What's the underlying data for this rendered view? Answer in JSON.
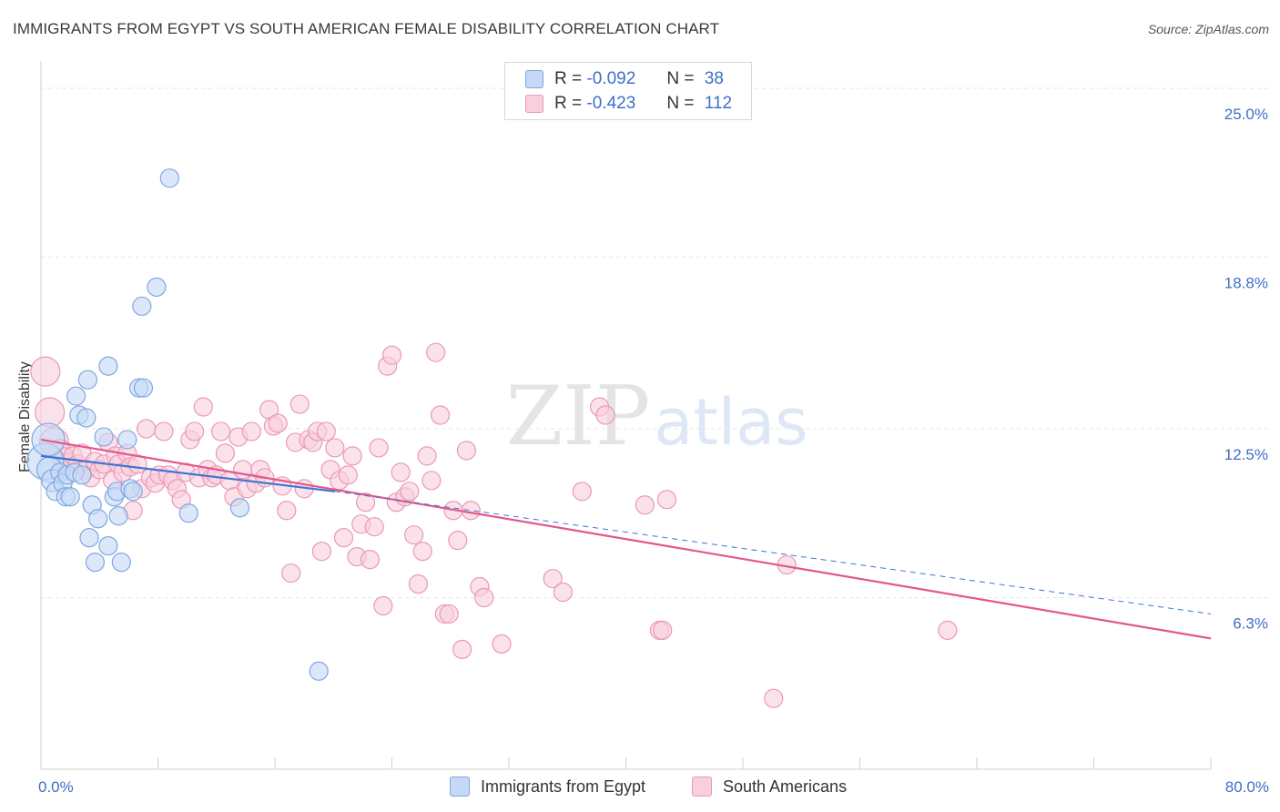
{
  "title": "IMMIGRANTS FROM EGYPT VS SOUTH AMERICAN FEMALE DISABILITY CORRELATION CHART",
  "source": "Source: ZipAtlas.com",
  "watermark": {
    "zip": "ZIP",
    "atlas": "atlas"
  },
  "legend": {
    "rows": [
      {
        "r_label": "R =",
        "r_value": "-0.092",
        "n_label": "N =",
        "n_value": "38"
      },
      {
        "r_label": "R =",
        "r_value": "-0.423",
        "n_label": "N =",
        "n_value": "112"
      }
    ]
  },
  "colors": {
    "blue_fill": "#c5d9f7",
    "blue_stroke": "#7ea7e0",
    "blue_line": "#3b74d4",
    "pink_fill": "#f9cfdc",
    "pink_stroke": "#eb98b4",
    "pink_line": "#e2588a",
    "tick_label": "#3f6fc7",
    "grid": "#e6e6e6"
  },
  "chart_data": {
    "type": "scatter",
    "title": "IMMIGRANTS FROM EGYPT VS SOUTH AMERICAN FEMALE DISABILITY CORRELATION CHART",
    "xlabel": "",
    "ylabel": "Female Disability",
    "xlim": [
      0,
      80
    ],
    "ylim": [
      0,
      25.8
    ],
    "x_tick_labels": [
      "0.0%",
      "80.0%"
    ],
    "y_ticks": [
      6.3,
      12.5,
      18.8,
      25.0
    ],
    "y_tick_labels": [
      "6.3%",
      "12.5%",
      "18.8%",
      "25.0%"
    ],
    "series": [
      {
        "name": "Immigrants from Egypt",
        "r": -0.092,
        "n": 38,
        "trend": {
          "x0": 0,
          "y0": 11.5,
          "x1": 20.1,
          "y1": 10.2,
          "dash_x1": 80,
          "dash_y1": 5.7
        },
        "points": [
          [
            0.3,
            11.3,
            20
          ],
          [
            0.5,
            12.1,
            18
          ],
          [
            0.6,
            11.0,
            14
          ],
          [
            0.8,
            10.6,
            12
          ],
          [
            1.0,
            10.2,
            10
          ],
          [
            1.3,
            10.9,
            10
          ],
          [
            1.5,
            10.5,
            10
          ],
          [
            1.7,
            10.0,
            10
          ],
          [
            1.8,
            10.8,
            10
          ],
          [
            2.0,
            10.0,
            10
          ],
          [
            2.3,
            10.9,
            10
          ],
          [
            2.4,
            13.7,
            10
          ],
          [
            2.6,
            13.0,
            10
          ],
          [
            2.8,
            10.8,
            10
          ],
          [
            3.1,
            12.9,
            10
          ],
          [
            3.2,
            14.3,
            10
          ],
          [
            3.3,
            8.5,
            10
          ],
          [
            3.5,
            9.7,
            10
          ],
          [
            3.7,
            7.6,
            10
          ],
          [
            3.9,
            9.2,
            10
          ],
          [
            4.3,
            12.2,
            10
          ],
          [
            4.6,
            14.8,
            10
          ],
          [
            4.6,
            8.2,
            10
          ],
          [
            5.0,
            10.0,
            10
          ],
          [
            5.2,
            10.2,
            10
          ],
          [
            5.3,
            9.3,
            10
          ],
          [
            5.5,
            7.6,
            10
          ],
          [
            5.9,
            12.1,
            10
          ],
          [
            6.1,
            10.3,
            10
          ],
          [
            6.3,
            10.2,
            10
          ],
          [
            6.7,
            14.0,
            10
          ],
          [
            6.9,
            17.0,
            10
          ],
          [
            7.0,
            14.0,
            10
          ],
          [
            7.9,
            17.7,
            10
          ],
          [
            8.8,
            21.7,
            10
          ],
          [
            10.1,
            9.4,
            10
          ],
          [
            13.6,
            9.6,
            10
          ],
          [
            19.0,
            3.6,
            10
          ]
        ]
      },
      {
        "name": "South Americans",
        "r": -0.423,
        "n": 112,
        "trend": {
          "x0": 0,
          "y0": 12.1,
          "x1": 80,
          "y1": 4.8
        },
        "points": [
          [
            0.3,
            14.6,
            16
          ],
          [
            0.6,
            13.1,
            16
          ],
          [
            0.9,
            12.0,
            16
          ],
          [
            1.3,
            11.7,
            12
          ],
          [
            1.6,
            11.4,
            12
          ],
          [
            1.9,
            11.2,
            12
          ],
          [
            2.2,
            11.5,
            10
          ],
          [
            2.5,
            11.2,
            10
          ],
          [
            2.8,
            11.6,
            10
          ],
          [
            3.1,
            11.0,
            10
          ],
          [
            3.4,
            10.7,
            10
          ],
          [
            3.7,
            11.3,
            10
          ],
          [
            4.0,
            11.0,
            10
          ],
          [
            4.3,
            11.2,
            10
          ],
          [
            4.6,
            12.0,
            10
          ],
          [
            4.9,
            10.6,
            10
          ],
          [
            5.1,
            11.5,
            10
          ],
          [
            5.3,
            11.2,
            10
          ],
          [
            5.6,
            10.9,
            10
          ],
          [
            5.9,
            11.6,
            10
          ],
          [
            6.1,
            11.1,
            10
          ],
          [
            6.3,
            9.5,
            10
          ],
          [
            6.6,
            11.2,
            10
          ],
          [
            6.9,
            10.3,
            10
          ],
          [
            7.2,
            12.5,
            10
          ],
          [
            7.5,
            10.7,
            10
          ],
          [
            7.8,
            10.5,
            10
          ],
          [
            8.1,
            10.8,
            10
          ],
          [
            8.4,
            12.4,
            10
          ],
          [
            8.7,
            10.8,
            10
          ],
          [
            9.0,
            10.6,
            10
          ],
          [
            9.3,
            10.3,
            10
          ],
          [
            9.6,
            9.9,
            10
          ],
          [
            9.9,
            10.9,
            10
          ],
          [
            10.2,
            12.1,
            10
          ],
          [
            10.5,
            12.4,
            10
          ],
          [
            10.8,
            10.7,
            10
          ],
          [
            11.1,
            13.3,
            10
          ],
          [
            11.4,
            11.0,
            10
          ],
          [
            11.7,
            10.7,
            10
          ],
          [
            12.0,
            10.8,
            10
          ],
          [
            12.3,
            12.4,
            10
          ],
          [
            12.6,
            11.6,
            10
          ],
          [
            12.9,
            10.6,
            10
          ],
          [
            13.2,
            10.0,
            10
          ],
          [
            13.5,
            12.2,
            10
          ],
          [
            13.8,
            11.0,
            10
          ],
          [
            14.1,
            10.3,
            10
          ],
          [
            14.4,
            12.4,
            10
          ],
          [
            14.7,
            10.5,
            10
          ],
          [
            15.0,
            11.0,
            10
          ],
          [
            15.3,
            10.7,
            10
          ],
          [
            15.6,
            13.2,
            10
          ],
          [
            15.9,
            12.6,
            10
          ],
          [
            16.2,
            12.7,
            10
          ],
          [
            16.5,
            10.4,
            10
          ],
          [
            16.8,
            9.5,
            10
          ],
          [
            17.1,
            7.2,
            10
          ],
          [
            17.4,
            12.0,
            10
          ],
          [
            17.7,
            13.4,
            10
          ],
          [
            18.0,
            10.3,
            10
          ],
          [
            18.3,
            12.1,
            10
          ],
          [
            18.6,
            12.0,
            10
          ],
          [
            18.9,
            12.4,
            10
          ],
          [
            19.2,
            8.0,
            10
          ],
          [
            19.5,
            12.4,
            10
          ],
          [
            19.8,
            11.0,
            10
          ],
          [
            20.1,
            11.8,
            10
          ],
          [
            20.4,
            10.6,
            10
          ],
          [
            20.7,
            8.5,
            10
          ],
          [
            21.0,
            10.8,
            10
          ],
          [
            21.3,
            11.5,
            10
          ],
          [
            21.6,
            7.8,
            10
          ],
          [
            21.9,
            9.0,
            10
          ],
          [
            22.2,
            9.8,
            10
          ],
          [
            22.5,
            7.7,
            10
          ],
          [
            22.8,
            8.9,
            10
          ],
          [
            23.1,
            11.8,
            10
          ],
          [
            23.4,
            6.0,
            10
          ],
          [
            23.7,
            14.8,
            10
          ],
          [
            24.0,
            15.2,
            10
          ],
          [
            24.3,
            9.8,
            10
          ],
          [
            24.6,
            10.9,
            10
          ],
          [
            24.9,
            10.0,
            10
          ],
          [
            25.2,
            10.2,
            10
          ],
          [
            25.5,
            8.6,
            10
          ],
          [
            25.8,
            6.8,
            10
          ],
          [
            26.1,
            8.0,
            10
          ],
          [
            26.4,
            11.5,
            10
          ],
          [
            26.7,
            10.6,
            10
          ],
          [
            27.0,
            15.3,
            10
          ],
          [
            27.3,
            13.0,
            10
          ],
          [
            27.6,
            5.7,
            10
          ],
          [
            27.9,
            5.7,
            10
          ],
          [
            28.2,
            9.5,
            10
          ],
          [
            28.5,
            8.4,
            10
          ],
          [
            28.8,
            4.4,
            10
          ],
          [
            29.1,
            11.7,
            10
          ],
          [
            29.4,
            9.5,
            10
          ],
          [
            30.0,
            6.7,
            10
          ],
          [
            30.3,
            6.3,
            10
          ],
          [
            31.5,
            4.6,
            10
          ],
          [
            35.0,
            7.0,
            10
          ],
          [
            35.7,
            6.5,
            10
          ],
          [
            37.0,
            10.2,
            10
          ],
          [
            38.2,
            13.3,
            10
          ],
          [
            38.6,
            13.0,
            10
          ],
          [
            41.3,
            9.7,
            10
          ],
          [
            42.3,
            5.1,
            10
          ],
          [
            42.5,
            5.1,
            10
          ],
          [
            42.8,
            9.9,
            10
          ],
          [
            50.1,
            2.6,
            10
          ],
          [
            51.0,
            7.5,
            10
          ],
          [
            62.0,
            5.1,
            10
          ]
        ]
      }
    ]
  }
}
